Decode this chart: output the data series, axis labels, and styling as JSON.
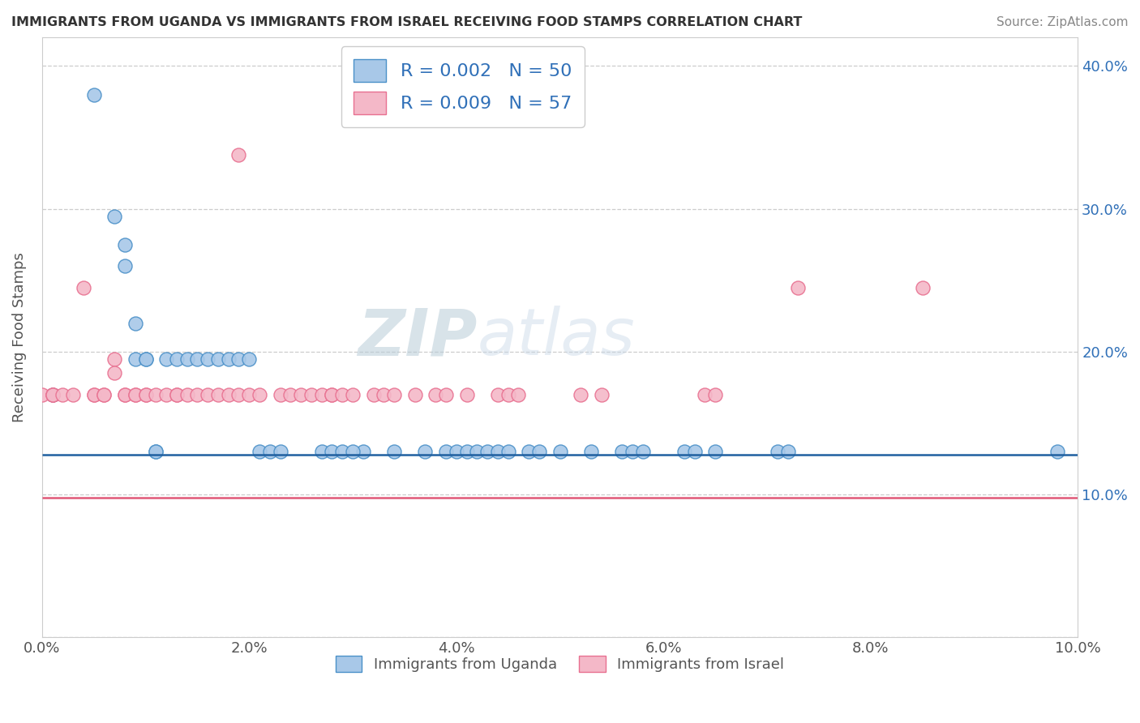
{
  "title": "IMMIGRANTS FROM UGANDA VS IMMIGRANTS FROM ISRAEL RECEIVING FOOD STAMPS CORRELATION CHART",
  "source": "Source: ZipAtlas.com",
  "ylabel": "Receiving Food Stamps",
  "xlim": [
    0.0,
    0.1
  ],
  "ylim": [
    0.0,
    0.42
  ],
  "xticks": [
    0.0,
    0.02,
    0.04,
    0.06,
    0.08,
    0.1
  ],
  "xtick_labels": [
    "0.0%",
    "2.0%",
    "4.0%",
    "6.0%",
    "8.0%",
    "10.0%"
  ],
  "yticks": [
    0.0,
    0.1,
    0.2,
    0.3,
    0.4
  ],
  "ytick_labels": [
    "",
    "10.0%",
    "20.0%",
    "30.0%",
    "40.0%"
  ],
  "legend1_label": "R = 0.002   N = 50",
  "legend2_label": "R = 0.009   N = 57",
  "blue_mean": 0.128,
  "pink_mean": 0.098,
  "blue_color": "#a8c8e8",
  "pink_color": "#f4b8c8",
  "blue_edge_color": "#4a90c8",
  "pink_edge_color": "#e87090",
  "blue_line_color": "#2060a0",
  "pink_line_color": "#e05878",
  "watermark": "ZIPatlas",
  "uganda_scatter_x": [
    0.001,
    0.005,
    0.007,
    0.008,
    0.008,
    0.009,
    0.009,
    0.01,
    0.01,
    0.011,
    0.011,
    0.012,
    0.013,
    0.014,
    0.015,
    0.016,
    0.017,
    0.018,
    0.019,
    0.02,
    0.021,
    0.022,
    0.023,
    0.027,
    0.028,
    0.029,
    0.031,
    0.034,
    0.037,
    0.039,
    0.04,
    0.041,
    0.042,
    0.043,
    0.044,
    0.045,
    0.047,
    0.05,
    0.053,
    0.056,
    0.062,
    0.063,
    0.065,
    0.071,
    0.072,
    0.057,
    0.03,
    0.048,
    0.058,
    0.098
  ],
  "uganda_scatter_y": [
    0.17,
    0.38,
    0.295,
    0.275,
    0.26,
    0.22,
    0.195,
    0.195,
    0.195,
    0.13,
    0.13,
    0.195,
    0.195,
    0.195,
    0.195,
    0.195,
    0.195,
    0.195,
    0.195,
    0.195,
    0.13,
    0.13,
    0.13,
    0.13,
    0.13,
    0.13,
    0.13,
    0.13,
    0.13,
    0.13,
    0.13,
    0.13,
    0.13,
    0.13,
    0.13,
    0.13,
    0.13,
    0.13,
    0.13,
    0.13,
    0.13,
    0.13,
    0.13,
    0.13,
    0.13,
    0.13,
    0.13,
    0.13,
    0.13,
    0.13
  ],
  "israel_scatter_x": [
    0.0,
    0.001,
    0.001,
    0.001,
    0.002,
    0.003,
    0.004,
    0.005,
    0.005,
    0.006,
    0.006,
    0.007,
    0.007,
    0.008,
    0.008,
    0.009,
    0.009,
    0.01,
    0.01,
    0.011,
    0.012,
    0.013,
    0.013,
    0.014,
    0.015,
    0.016,
    0.017,
    0.018,
    0.019,
    0.019,
    0.02,
    0.021,
    0.023,
    0.024,
    0.025,
    0.026,
    0.027,
    0.028,
    0.028,
    0.029,
    0.03,
    0.032,
    0.033,
    0.034,
    0.036,
    0.038,
    0.039,
    0.041,
    0.044,
    0.045,
    0.046,
    0.052,
    0.054,
    0.064,
    0.065,
    0.073,
    0.085
  ],
  "israel_scatter_y": [
    0.17,
    0.17,
    0.17,
    0.17,
    0.17,
    0.17,
    0.245,
    0.17,
    0.17,
    0.17,
    0.17,
    0.195,
    0.185,
    0.17,
    0.17,
    0.17,
    0.17,
    0.17,
    0.17,
    0.17,
    0.17,
    0.17,
    0.17,
    0.17,
    0.17,
    0.17,
    0.17,
    0.17,
    0.17,
    0.338,
    0.17,
    0.17,
    0.17,
    0.17,
    0.17,
    0.17,
    0.17,
    0.17,
    0.17,
    0.17,
    0.17,
    0.17,
    0.17,
    0.17,
    0.17,
    0.17,
    0.17,
    0.17,
    0.17,
    0.17,
    0.17,
    0.17,
    0.17,
    0.17,
    0.17,
    0.245,
    0.245
  ]
}
